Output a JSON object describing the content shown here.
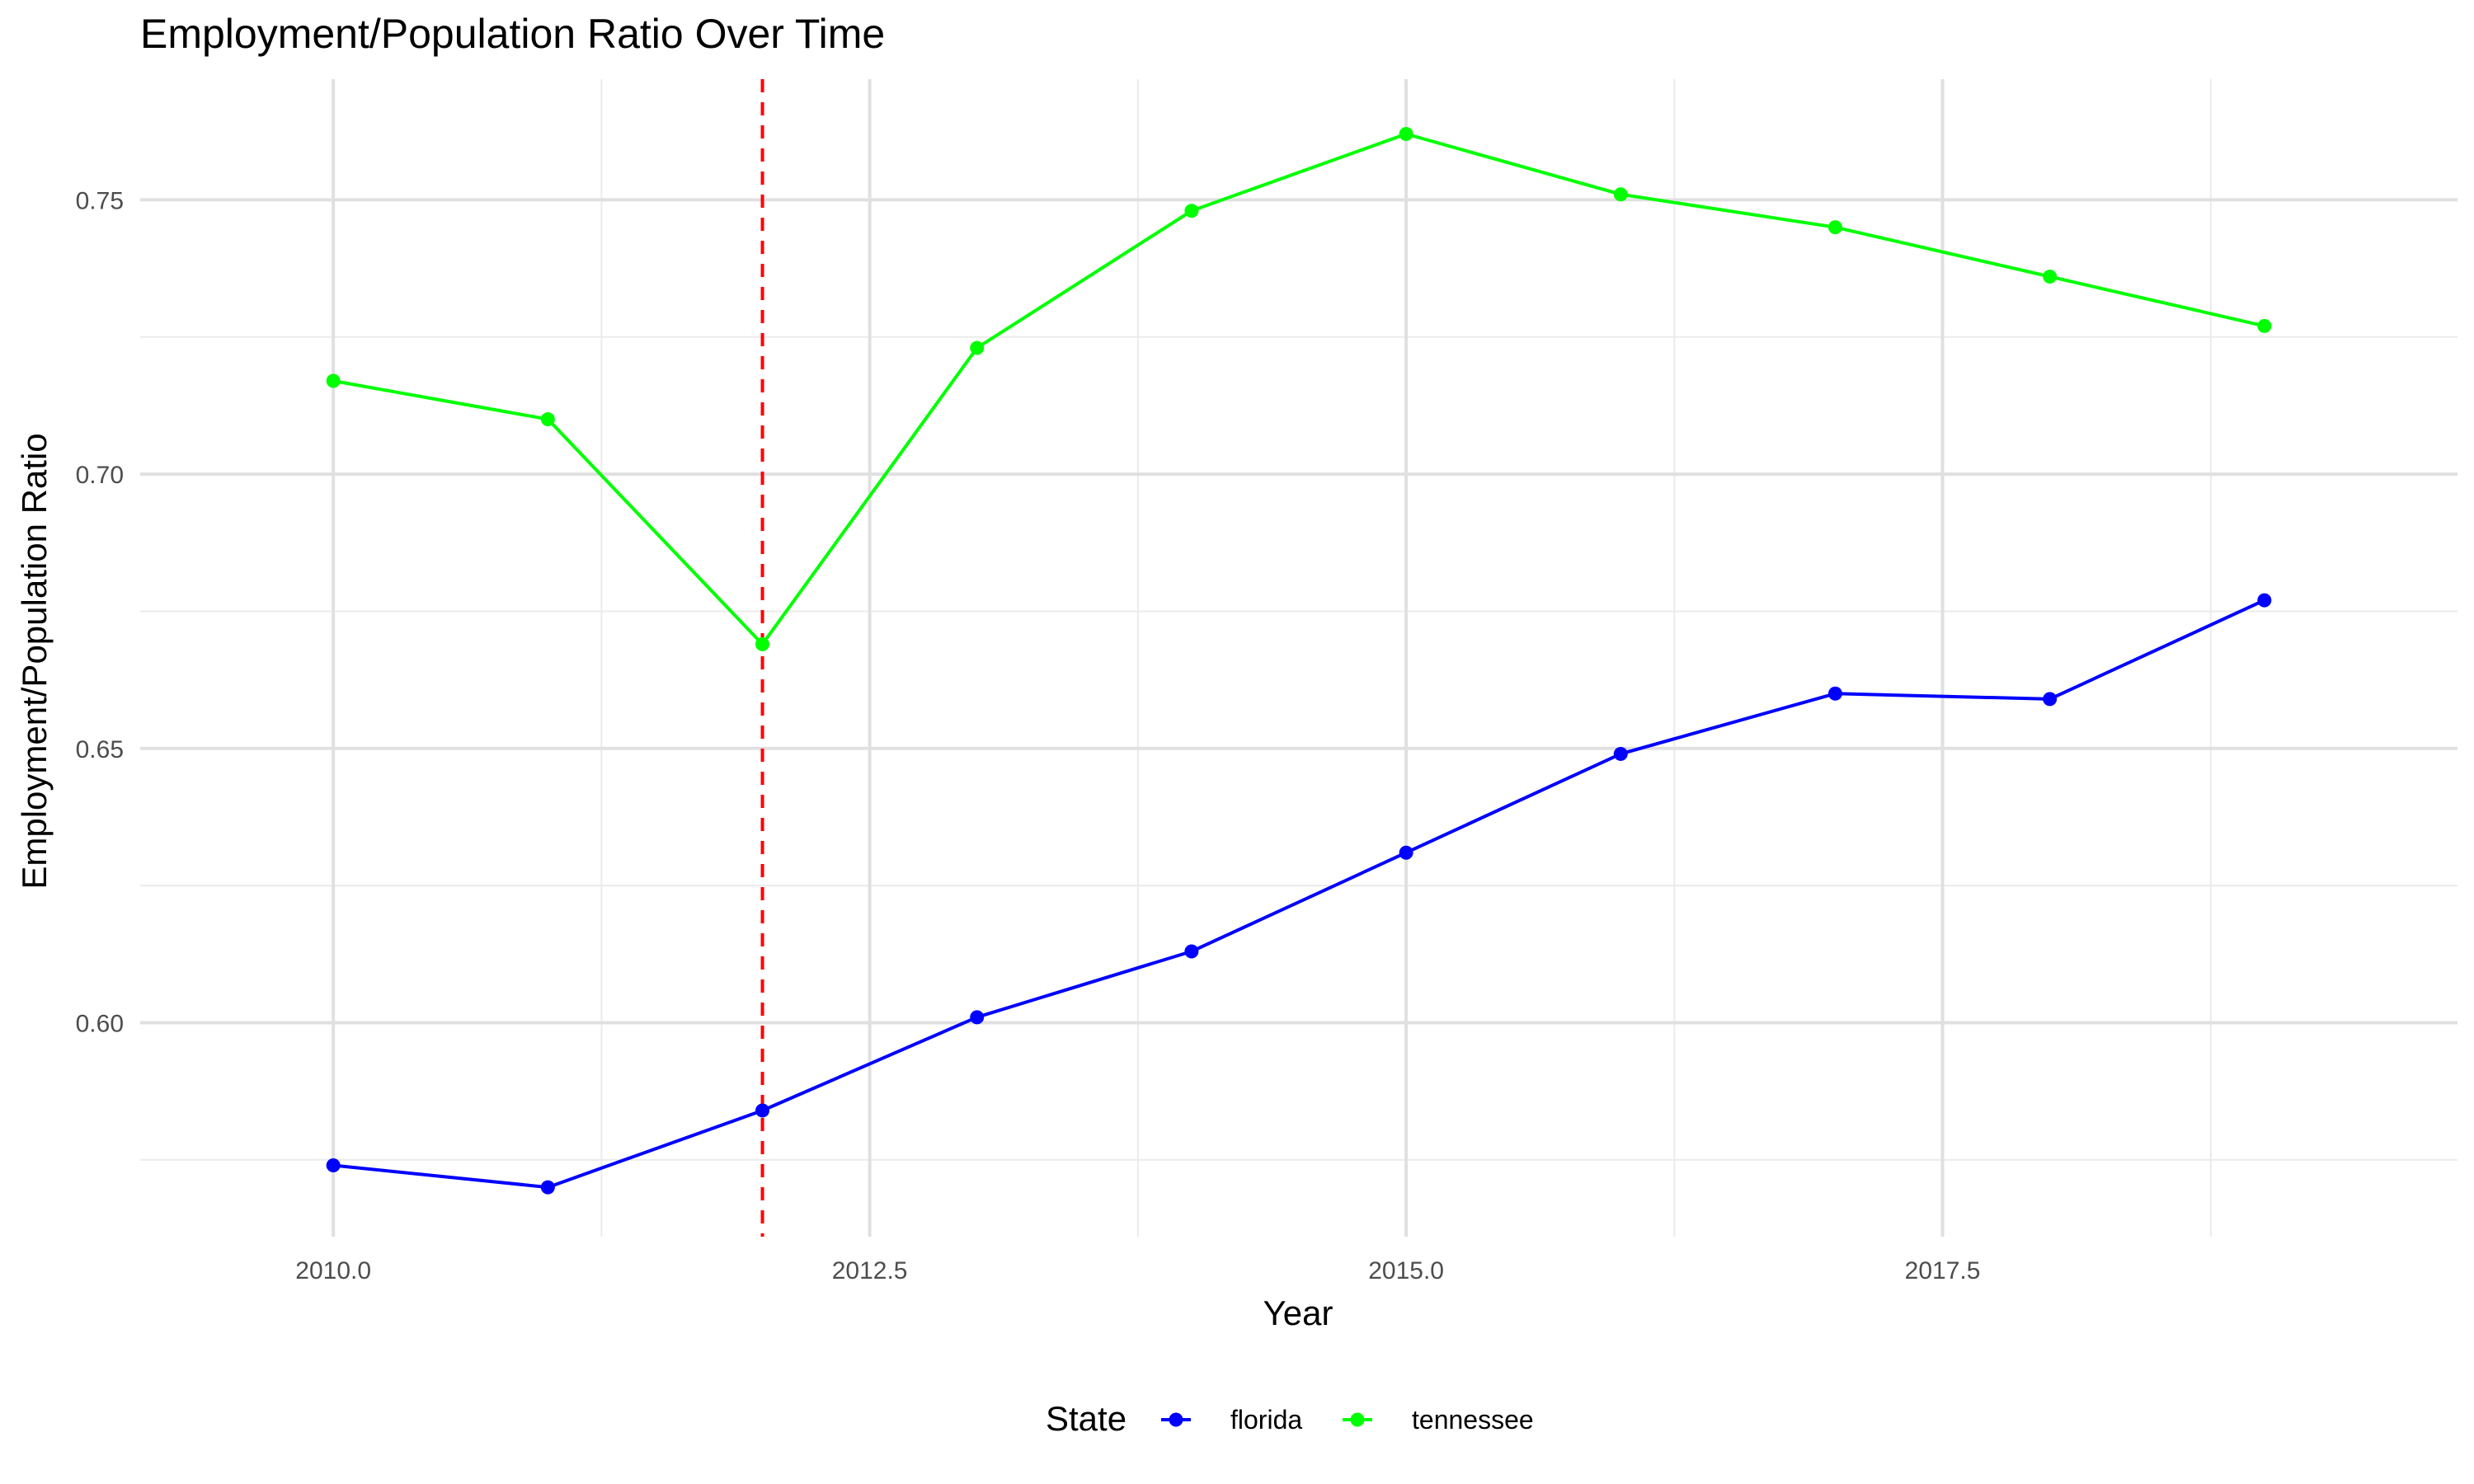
{
  "chart_data": {
    "type": "line",
    "title": "Employment/Population Ratio Over Time",
    "xlabel": "Year",
    "ylabel": "Employment/Population Ratio",
    "xlim": [
      2009.1,
      2019.9
    ],
    "ylim": [
      0.561,
      0.772
    ],
    "x_ticks": [
      {
        "value": 2010,
        "label": "2010.0"
      },
      {
        "value": 2012.5,
        "label": "2012.5"
      },
      {
        "value": 2015,
        "label": "2015.0"
      },
      {
        "value": 2017.5,
        "label": "2017.5"
      }
    ],
    "x_minor_ticks": [
      2011.25,
      2013.75,
      2016.25,
      2018.75
    ],
    "y_ticks": [
      {
        "value": 0.6,
        "label": "0.60"
      },
      {
        "value": 0.65,
        "label": "0.65"
      },
      {
        "value": 0.7,
        "label": "0.70"
      },
      {
        "value": 0.75,
        "label": "0.75"
      }
    ],
    "y_minor_ticks": [
      0.575,
      0.625,
      0.675,
      0.725
    ],
    "grid": true,
    "legend": {
      "title": "State",
      "position": "bottom"
    },
    "reference_line": {
      "x": 2012,
      "color": "#ff0000",
      "style": "dashed"
    },
    "x": [
      2010,
      2011,
      2012,
      2013,
      2014,
      2015,
      2016,
      2017,
      2018,
      2019
    ],
    "series": [
      {
        "name": "florida",
        "color": "#0000ff",
        "values": [
          0.574,
          0.57,
          0.584,
          0.601,
          0.613,
          0.631,
          0.649,
          0.66,
          0.659,
          0.677
        ]
      },
      {
        "name": "tennessee",
        "color": "#00ff00",
        "values": [
          0.717,
          0.71,
          0.669,
          0.723,
          0.748,
          0.762,
          0.751,
          0.745,
          0.736,
          0.727
        ]
      }
    ]
  }
}
